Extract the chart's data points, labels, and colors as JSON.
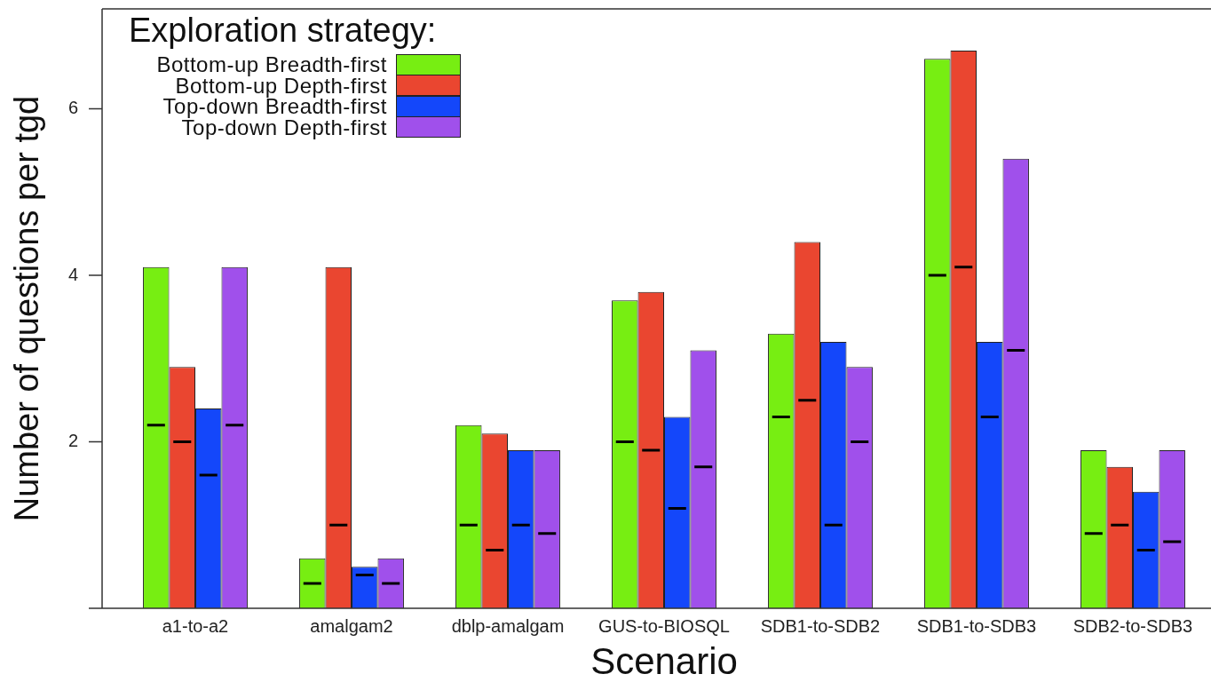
{
  "chart_data": {
    "type": "bar",
    "ylabel": "Number of questions per tgd",
    "xlabel": "Scenario",
    "legend_title": "Exploration strategy:",
    "legend": "top left",
    "grid": false,
    "categories": [
      "a1-to-a2",
      "amalgam2",
      "dblp-amalgam",
      "GUS-to-BIOSQL",
      "SDB1-to-SDB2",
      "SDB1-to-SDB3",
      "SDB2-to-SDB3"
    ],
    "ylim": [
      0,
      7.2
    ],
    "yticks": [
      {
        "value": 0,
        "label": null
      },
      2,
      4,
      6
    ],
    "series": [
      {
        "name": "Bottom-up Breadth-first",
        "color": "#77ee12",
        "values": [
          4.1,
          0.6,
          2.2,
          3.7,
          3.3,
          6.6,
          1.9
        ],
        "errors": [
          [
            2.2,
            2.2
          ],
          [
            0.3,
            0.3
          ],
          [
            1.0,
            1.0
          ],
          [
            2.0,
            2.0
          ],
          [
            2.3,
            2.3
          ],
          [
            4.0,
            4.0
          ],
          [
            0.9,
            0.9
          ]
        ]
      },
      {
        "name": "Bottom-up Depth-first",
        "color": "#ea4630",
        "values": [
          2.9,
          4.1,
          2.1,
          3.8,
          4.4,
          6.7,
          1.7
        ],
        "errors": [
          [
            2.0,
            2.0
          ],
          [
            1.0,
            1.0
          ],
          [
            0.7,
            0.7
          ],
          [
            1.9,
            1.9
          ],
          [
            2.5,
            2.5
          ],
          [
            4.1,
            4.1
          ],
          [
            1.0,
            1.0
          ]
        ]
      },
      {
        "name": "Top-down Breadth-first",
        "color": "#1447fa",
        "values": [
          2.4,
          0.5,
          1.9,
          2.3,
          3.2,
          3.2,
          1.4
        ],
        "errors": [
          [
            1.6,
            1.6
          ],
          [
            0.4,
            0.4
          ],
          [
            1.0,
            1.0
          ],
          [
            1.2,
            1.2
          ],
          [
            1.0,
            1.0
          ],
          [
            2.3,
            2.3
          ],
          [
            0.7,
            0.7
          ]
        ]
      },
      {
        "name": "Top-down Depth-first",
        "color": "#a050eb",
        "values": [
          4.1,
          0.6,
          1.9,
          3.1,
          2.9,
          5.4,
          1.9
        ],
        "errors": [
          [
            2.2,
            2.2
          ],
          [
            0.3,
            0.3
          ],
          [
            0.9,
            0.9
          ],
          [
            1.7,
            1.7
          ],
          [
            2.0,
            2.0
          ],
          [
            3.1,
            3.1
          ],
          [
            0.8,
            0.8
          ]
        ]
      }
    ]
  }
}
